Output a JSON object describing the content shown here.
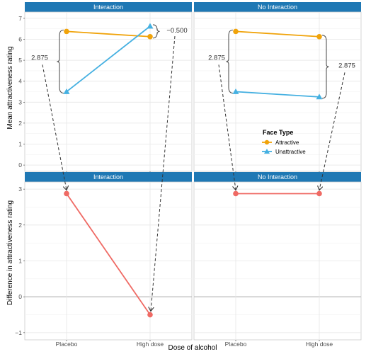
{
  "colors": {
    "strip": "#1f78b4",
    "panel_bg": "#ffffff",
    "grid_major": "#e6e6e6",
    "grid_minor": "#f2f2f2",
    "attractive": "#f0a30a",
    "unattractive": "#45b0e1",
    "difference": "#ef6a64",
    "arrow": "#333333",
    "zero_line": "#b3b3b3"
  },
  "chart_data": [
    {
      "panel": "top-left",
      "type": "line",
      "title": "Interaction",
      "categories": [
        "Placebo",
        "High dose"
      ],
      "ylabel": "Mean attractiveness rating",
      "ylim": [
        -0.3,
        7.3
      ],
      "yticks": [
        0,
        1,
        2,
        3,
        4,
        5,
        6,
        7
      ],
      "grid": true,
      "series": [
        {
          "name": "Attractive",
          "values": [
            6.375,
            6.125
          ],
          "marker": "circle"
        },
        {
          "name": "Unattractive",
          "values": [
            3.5,
            6.625
          ],
          "marker": "triangle"
        }
      ],
      "annotations": [
        "2.875",
        "−0.500"
      ]
    },
    {
      "panel": "top-right",
      "type": "line",
      "title": "No Interaction",
      "categories": [
        "Placebo",
        "High dose"
      ],
      "ylim": [
        -0.3,
        7.3
      ],
      "yticks": [
        0,
        1,
        2,
        3,
        4,
        5,
        6,
        7
      ],
      "grid": true,
      "series": [
        {
          "name": "Attractive",
          "values": [
            6.375,
            6.125
          ],
          "marker": "circle"
        },
        {
          "name": "Unattractive",
          "values": [
            3.5,
            3.25
          ],
          "marker": "triangle"
        }
      ],
      "annotations": [
        "2.875",
        "2.875"
      ]
    },
    {
      "panel": "bottom-left",
      "type": "line",
      "title": "Interaction",
      "categories": [
        "Placebo",
        "High dose"
      ],
      "ylabel": "Difference in attractiveness rating",
      "xlabel": "Dose of alcohol",
      "ylim": [
        -1.2,
        3.2
      ],
      "yticks": [
        -1,
        0,
        1,
        2,
        3
      ],
      "grid": true,
      "series": [
        {
          "values": [
            2.875,
            -0.5
          ],
          "marker": "circle"
        }
      ]
    },
    {
      "panel": "bottom-right",
      "type": "line",
      "title": "No Interaction",
      "categories": [
        "Placebo",
        "High dose"
      ],
      "ylim": [
        -1.2,
        3.2
      ],
      "yticks": [
        -1,
        0,
        1,
        2,
        3
      ],
      "grid": true,
      "series": [
        {
          "values": [
            2.875,
            2.875
          ],
          "marker": "circle"
        }
      ]
    }
  ],
  "legend": {
    "title": "Face Type",
    "placement": "inside top-right panel, bottom",
    "items": [
      "Attractive",
      "Unattractive"
    ]
  },
  "axis_titles": {
    "top_y": "Mean attractiveness rating",
    "bottom_y": "Difference in attractiveness rating",
    "x": "Dose of alcohol"
  }
}
